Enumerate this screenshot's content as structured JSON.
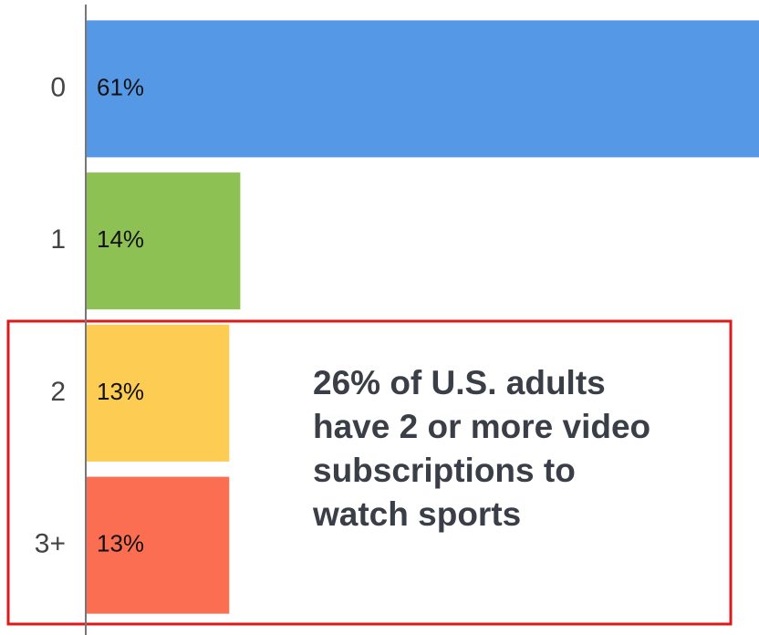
{
  "chart_data": {
    "type": "bar",
    "orientation": "horizontal",
    "categories": [
      "0",
      "1",
      "2",
      "3+"
    ],
    "values": [
      61,
      14,
      13,
      13
    ],
    "value_labels": [
      "61%",
      "14%",
      "13%",
      "13%"
    ],
    "colors": [
      "#5599e6",
      "#8dc153",
      "#fdcc52",
      "#fc6e51"
    ],
    "xlim": [
      0,
      61
    ],
    "annotation": [
      "26% of U.S. adults",
      "have 2 or more video",
      "subscriptions to",
      "watch sports"
    ]
  }
}
